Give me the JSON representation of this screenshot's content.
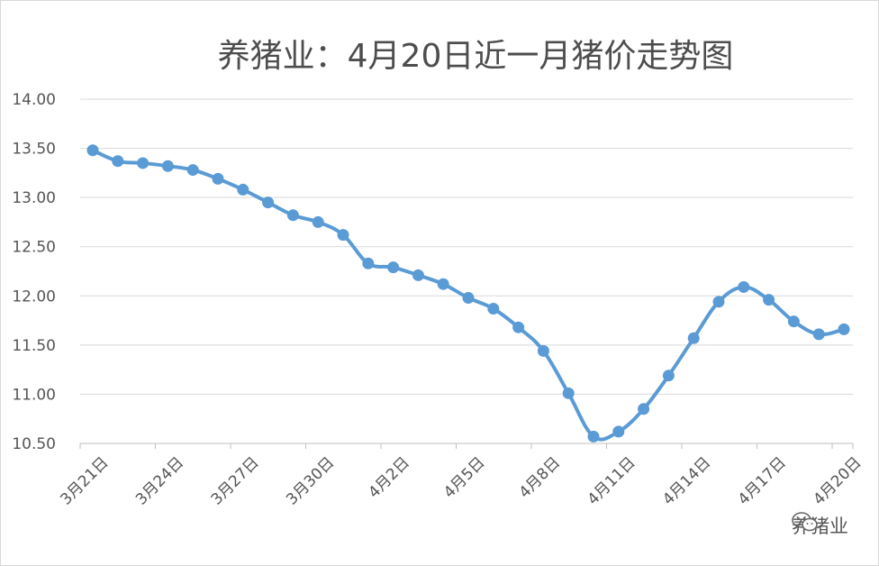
{
  "chart_data": {
    "type": "line",
    "title": "养猪业：4月20日近一月猪价走势图",
    "xlabel": "",
    "ylabel": "",
    "ylim": [
      10.5,
      14.0
    ],
    "yticks": [
      "14.00",
      "13.50",
      "13.00",
      "12.50",
      "12.00",
      "11.50",
      "11.00",
      "10.50"
    ],
    "xticks": [
      "3月21日",
      "3月24日",
      "3月27日",
      "3月30日",
      "4月2日",
      "4月5日",
      "4月8日",
      "4月11日",
      "4月14日",
      "4月17日",
      "4月20日"
    ],
    "grid": true,
    "series": [
      {
        "values": [
          13.48,
          13.37,
          13.35,
          13.32,
          13.28,
          13.19,
          13.08,
          12.95,
          12.82,
          12.75,
          12.62,
          12.33,
          12.29,
          12.21,
          12.12,
          11.98,
          11.87,
          11.68,
          11.44,
          11.01,
          10.57,
          10.62,
          10.85,
          11.19,
          11.57,
          11.94,
          12.09,
          11.96,
          11.74,
          11.61,
          11.66
        ],
        "color": "#5b9bd5"
      }
    ]
  },
  "watermark": {
    "text": "养猪业",
    "icon": "wechat-icon"
  }
}
